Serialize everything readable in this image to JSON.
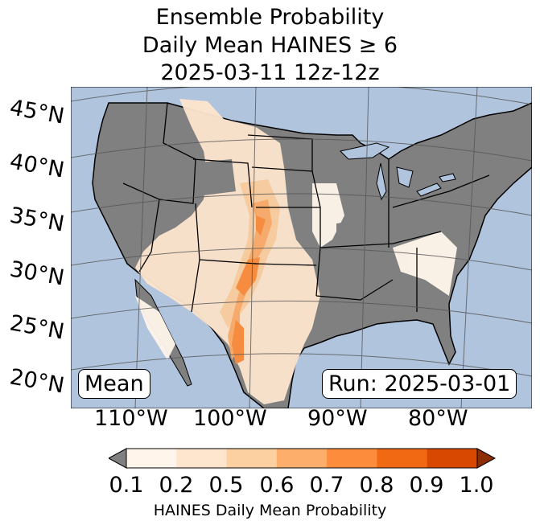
{
  "title": {
    "line1": "Ensemble Probability",
    "line2": "Daily Mean HAINES ≥ 6",
    "line3": "2025-03-11 12z-12z"
  },
  "map": {
    "lat_labels": [
      "45°N",
      "40°N",
      "35°N",
      "30°N",
      "25°N",
      "20°N"
    ],
    "lon_labels": [
      "110°W",
      "100°W",
      "90°W",
      "80°W"
    ],
    "colors": {
      "ocean": "#b0c4de",
      "land": "#808080",
      "border": "#000000",
      "grid": "#555555"
    }
  },
  "badges": {
    "mode": "Mean",
    "run": "Run: 2025-03-01"
  },
  "colorbar": {
    "ticks": [
      "0.1",
      "0.2",
      "0.5",
      "0.6",
      "0.7",
      "0.8",
      "0.9",
      "1.0"
    ],
    "colors": [
      "#fff5eb",
      "#fee6ce",
      "#fdd0a2",
      "#fdae6b",
      "#fd8d3c",
      "#f16913",
      "#d94801"
    ],
    "under_color": "#808080",
    "over_color": "#8c2d04",
    "label": "HAINES Daily Mean Probability"
  }
}
